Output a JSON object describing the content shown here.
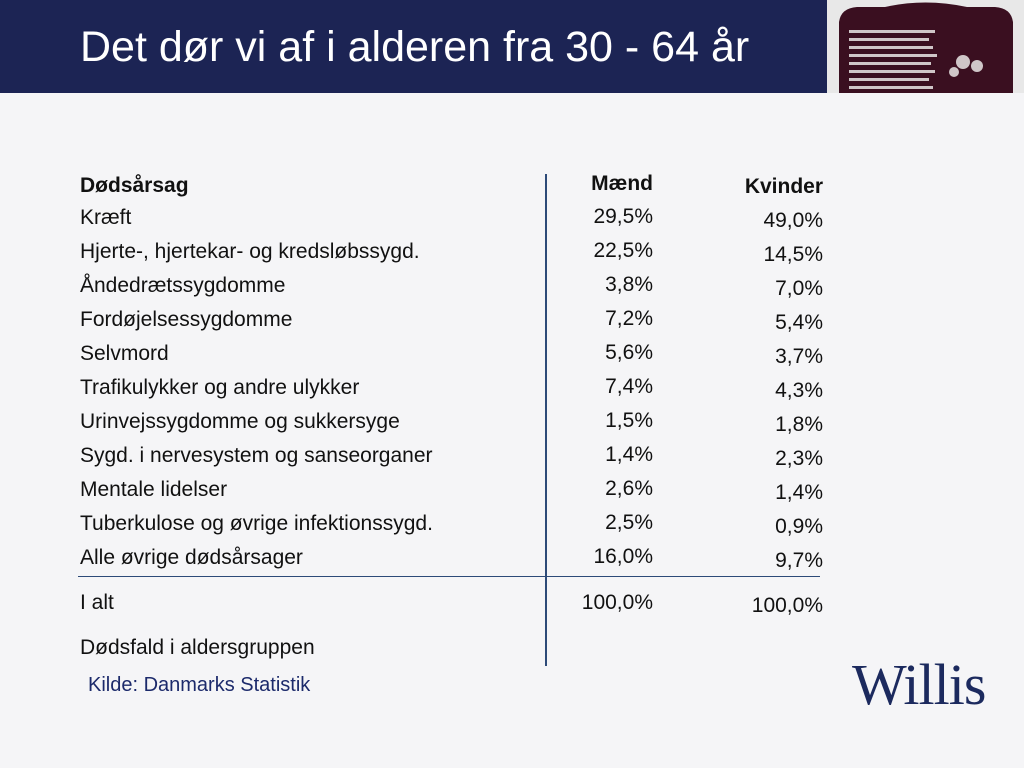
{
  "header": {
    "title": "Det dør vi af i alderen fra 30 - 64 år",
    "photo_icon": "gravestone-photo"
  },
  "table": {
    "headers": {
      "cause": "Dødsårsag",
      "men": "Mænd",
      "women": "Kvinder"
    },
    "rows": [
      {
        "cause": "Kræft",
        "men": "29,5%",
        "women": "49,0%"
      },
      {
        "cause": "Hjerte-, hjertekar- og kredsløbssygd.",
        "men": "22,5%",
        "women": "14,5%"
      },
      {
        "cause": "Åndedrætssygdomme",
        "men": "3,8%",
        "women": "7,0%"
      },
      {
        "cause": "Fordøjelsessygdomme",
        "men": "7,2%",
        "women": "5,4%"
      },
      {
        "cause": "Selvmord",
        "men": "5,6%",
        "women": "3,7%"
      },
      {
        "cause": "Trafikulykker og andre ulykker",
        "men": "7,4%",
        "women": "4,3%"
      },
      {
        "cause": "Urinvejssygdomme og sukkersyge",
        "men": "1,5%",
        "women": "1,8%"
      },
      {
        "cause": "Sygd.  i nervesystem og sanseorganer",
        "men": "1,4%",
        "women": "2,3%"
      },
      {
        "cause": "Mentale lidelser",
        "men": "2,6%",
        "women": "1,4%"
      },
      {
        "cause": "Tuberkulose og  øvrige infektionssygd.",
        "men": "2,5%",
        "women": "0,9%"
      },
      {
        "cause": "Alle øvrige dødsårsager",
        "men": "16,0%",
        "women": "9,7%"
      }
    ],
    "total": {
      "cause": "I alt",
      "men": "100,0%",
      "women": "100,0%"
    },
    "deaths_label": "Dødsfald i aldersgruppen"
  },
  "source": "Kilde: Danmarks Statistik",
  "logo": "Willis",
  "colors": {
    "header": "#1c2454",
    "rule": "#2d4a78",
    "source": "#1c2a6b",
    "logo": "#1c2a5e"
  }
}
